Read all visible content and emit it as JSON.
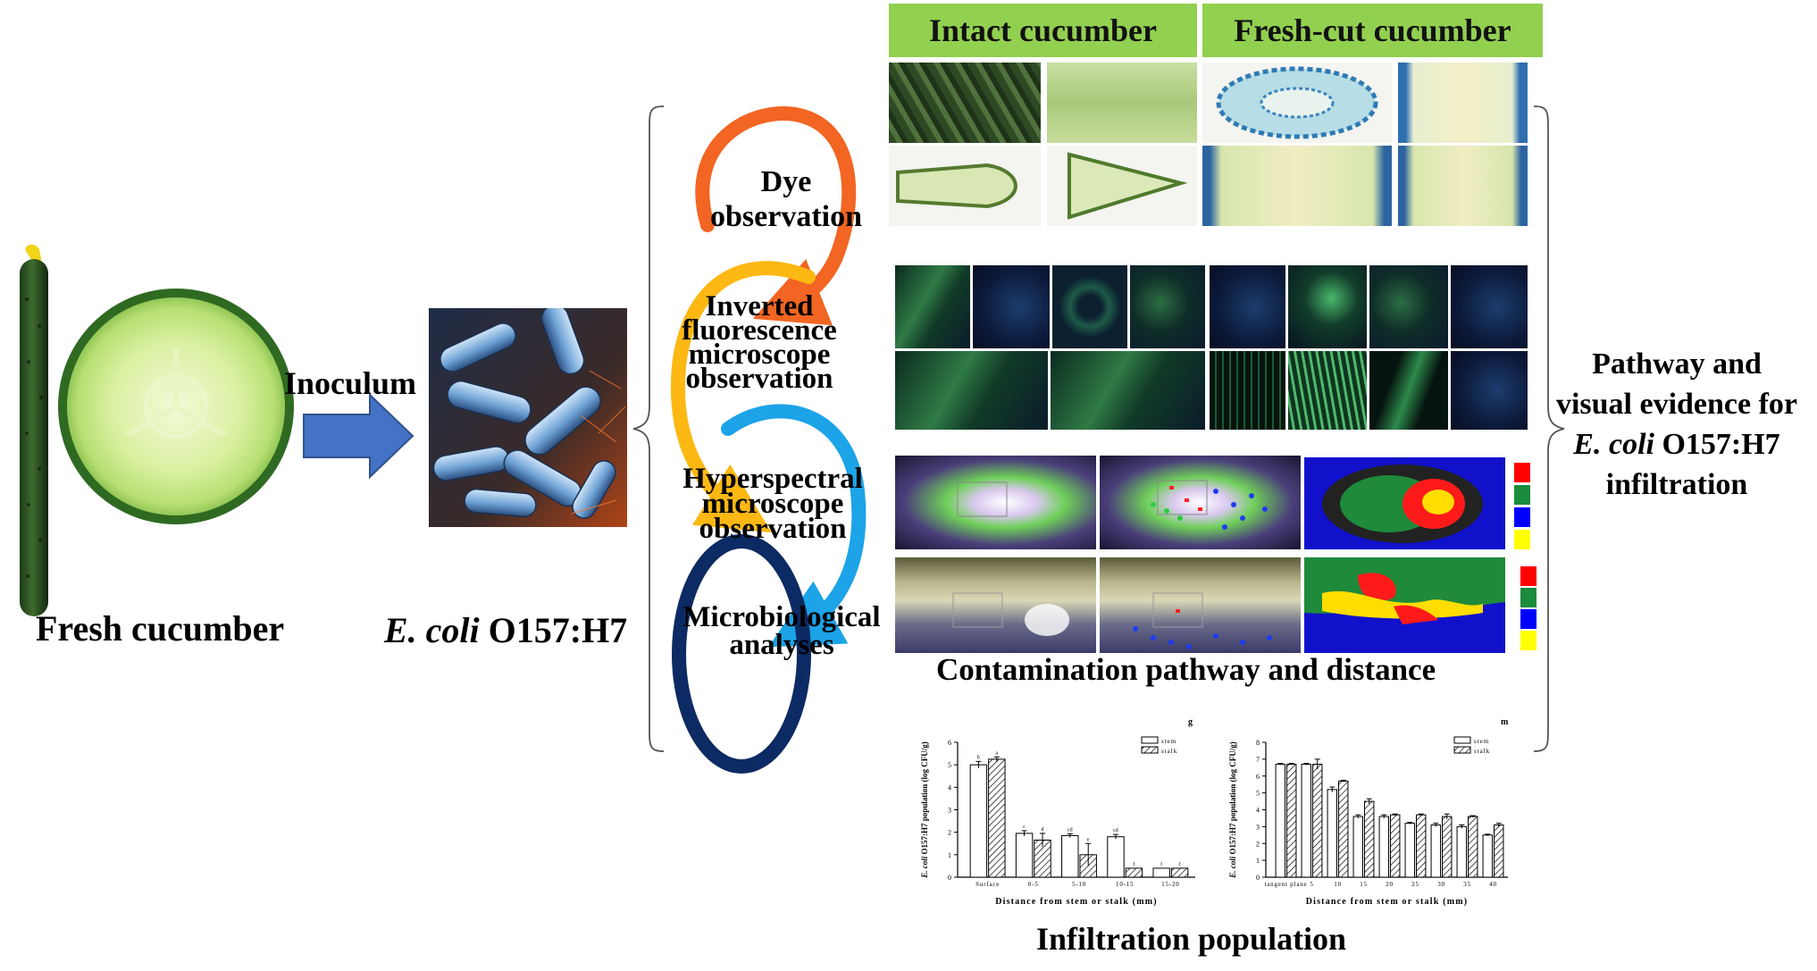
{
  "labels": {
    "fresh_cucumber": "Fresh cucumber",
    "inoculum": "Inoculum",
    "ecoli_italic": "E. coli",
    "ecoli_strain": "O157:H7",
    "contamination": "Contamination pathway and distance",
    "infiltration_population": "Infiltration population",
    "pathway_lines": [
      "Pathway and",
      "visual evidence for",
      "infiltration"
    ],
    "pathway_ecoli_italic": "E. coli",
    "pathway_ecoli_strain": "O157:H7"
  },
  "headers": {
    "intact": "Intact cucumber",
    "freshcut": "Fresh-cut cucumber"
  },
  "methods": [
    {
      "lines": [
        "Dye",
        "observation"
      ]
    },
    {
      "lines": [
        "Inverted",
        "fluorescence",
        "microscope",
        "observation"
      ]
    },
    {
      "lines": [
        "Hyperspectral",
        "microscope",
        "observation"
      ]
    },
    {
      "lines": [
        "Microbiological",
        "analyses"
      ]
    }
  ],
  "colors": {
    "header_green": "#92d050",
    "arrow_blue": "#4472c4",
    "ring_orange": "#f26522",
    "ring_yellow": "#fdb813",
    "ring_lightblue": "#1ca3e8",
    "ring_navy": "#0c2a63",
    "legend_red": "#ff0000",
    "legend_green": "#1a8c3c",
    "legend_blue": "#0000ff",
    "legend_yellow": "#ffff00"
  },
  "chart_data": [
    {
      "type": "bar",
      "panel_letter": "g",
      "categories": [
        "Surface",
        "0-5",
        "5-10",
        "10-15",
        "15-20"
      ],
      "series": [
        {
          "name": "stem",
          "values": [
            5.0,
            1.95,
            1.85,
            1.8,
            0.4
          ]
        },
        {
          "name": "stalk",
          "values": [
            5.25,
            1.65,
            1.0,
            0.4,
            0.4
          ]
        }
      ],
      "errors": [
        [
          0.15,
          0.12,
          0.08,
          0.1,
          0.0
        ],
        [
          0.1,
          0.3,
          0.5,
          0.0,
          0.0
        ]
      ],
      "sig_letters": [
        [
          "b",
          "c",
          "cd",
          "cd",
          "f"
        ],
        [
          "a",
          "d",
          "e",
          "f",
          "f"
        ]
      ],
      "ylim": [
        0,
        6
      ],
      "yticks": [
        "0",
        "1",
        "2",
        "3",
        "4",
        "5",
        "6"
      ],
      "ylabel_italic": "E. coli",
      "ylabel_rest": "O157:H7 population (log CFU/g)",
      "xlabel": "Distance from stem or stalk (mm)",
      "legend": "top-right"
    },
    {
      "type": "bar",
      "panel_letter": "m",
      "categories": [
        "tangent plane",
        "5",
        "10",
        "15",
        "20",
        "25",
        "30",
        "35",
        "40"
      ],
      "series": [
        {
          "name": "stem",
          "values": [
            6.7,
            6.7,
            5.2,
            3.6,
            3.6,
            3.2,
            3.1,
            3.0,
            2.5
          ]
        },
        {
          "name": "stalk",
          "values": [
            6.7,
            6.7,
            5.7,
            4.5,
            3.7,
            3.7,
            3.6,
            3.6,
            3.1
          ]
        }
      ],
      "errors": [
        [
          0.05,
          0.05,
          0.15,
          0.1,
          0.1,
          0.05,
          0.1,
          0.1,
          0.05
        ],
        [
          0.05,
          0.3,
          0.05,
          0.15,
          0.05,
          0.05,
          0.15,
          0.05,
          0.1
        ]
      ],
      "ylim": [
        0,
        8
      ],
      "yticks": [
        "0",
        "1",
        "2",
        "3",
        "4",
        "5",
        "6",
        "7",
        "8"
      ],
      "ylabel_italic": "E. coli",
      "ylabel_rest": "O157:H7 population (log CFU/g)",
      "xlabel": "Distance from stem or stalk (mm)",
      "legend": "top-right"
    }
  ]
}
